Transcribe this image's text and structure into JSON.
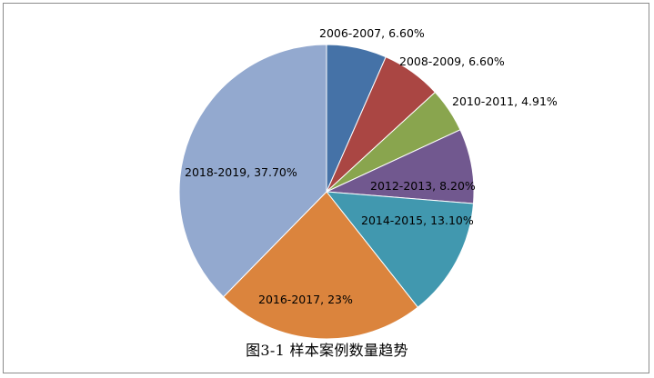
{
  "chart_data": {
    "type": "pie",
    "caption": "图3-1  样本案例数量趋势",
    "slices": [
      {
        "label": "2006-2007, 6.60%",
        "category": "2006-2007",
        "value": 6.6,
        "color": "#4572A7"
      },
      {
        "label": "2008-2009, 6.60%",
        "category": "2008-2009",
        "value": 6.6,
        "color": "#AA4643"
      },
      {
        "label": "2010-2011, 4.91%",
        "category": "2010-2011",
        "value": 4.91,
        "color": "#89A54E"
      },
      {
        "label": "2012-2013, 8.20%",
        "category": "2012-2013",
        "value": 8.2,
        "color": "#71588F"
      },
      {
        "label": "2014-2015, 13.10%",
        "category": "2014-2015",
        "value": 13.1,
        "color": "#4198AF"
      },
      {
        "label": "2016-2017, 23%",
        "category": "2016-2017",
        "value": 23,
        "color": "#DB843D"
      },
      {
        "label": "2018-2019, 37.70%",
        "category": "2018-2019",
        "value": 37.7,
        "color": "#93A9CF"
      }
    ]
  }
}
